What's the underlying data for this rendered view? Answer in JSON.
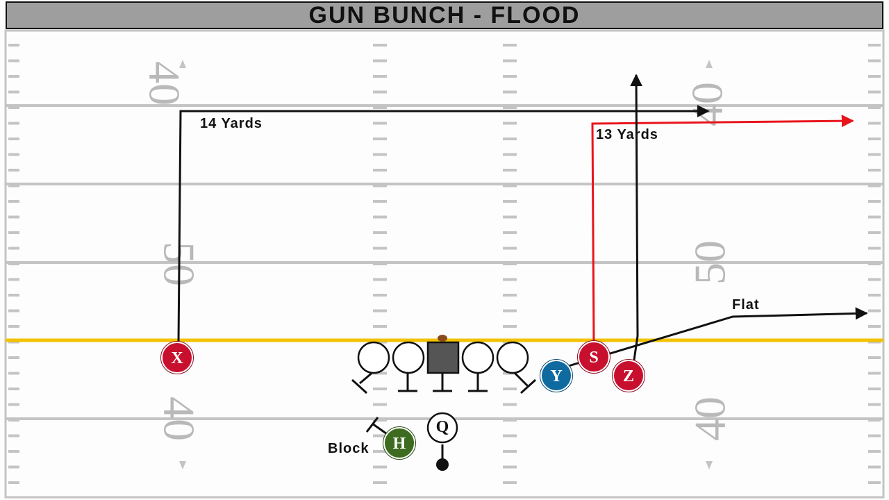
{
  "title": "GUN BUNCH - FLOOD",
  "yard_numbers": {
    "left_top": "40",
    "left_mid": "50",
    "left_bottom": "40",
    "right_top": "40",
    "right_mid": "50",
    "right_bottom": "40"
  },
  "players": {
    "X": "X",
    "S": "S",
    "Y": "Y",
    "Z": "Z",
    "H": "H",
    "Q": "Q"
  },
  "route_labels": {
    "x_route": "14 Yards",
    "s_route": "13 Yards",
    "y_route": "Flat",
    "h_assignment": "Block"
  },
  "colors": {
    "title_bar": "#9e9e9e",
    "line_of_scrimmage": "#f2c200",
    "receiver_red": "#c8102e",
    "tight_end_blue": "#0f6aa0",
    "back_green": "#3d6b1f",
    "s_route_red": "#e8141c"
  }
}
